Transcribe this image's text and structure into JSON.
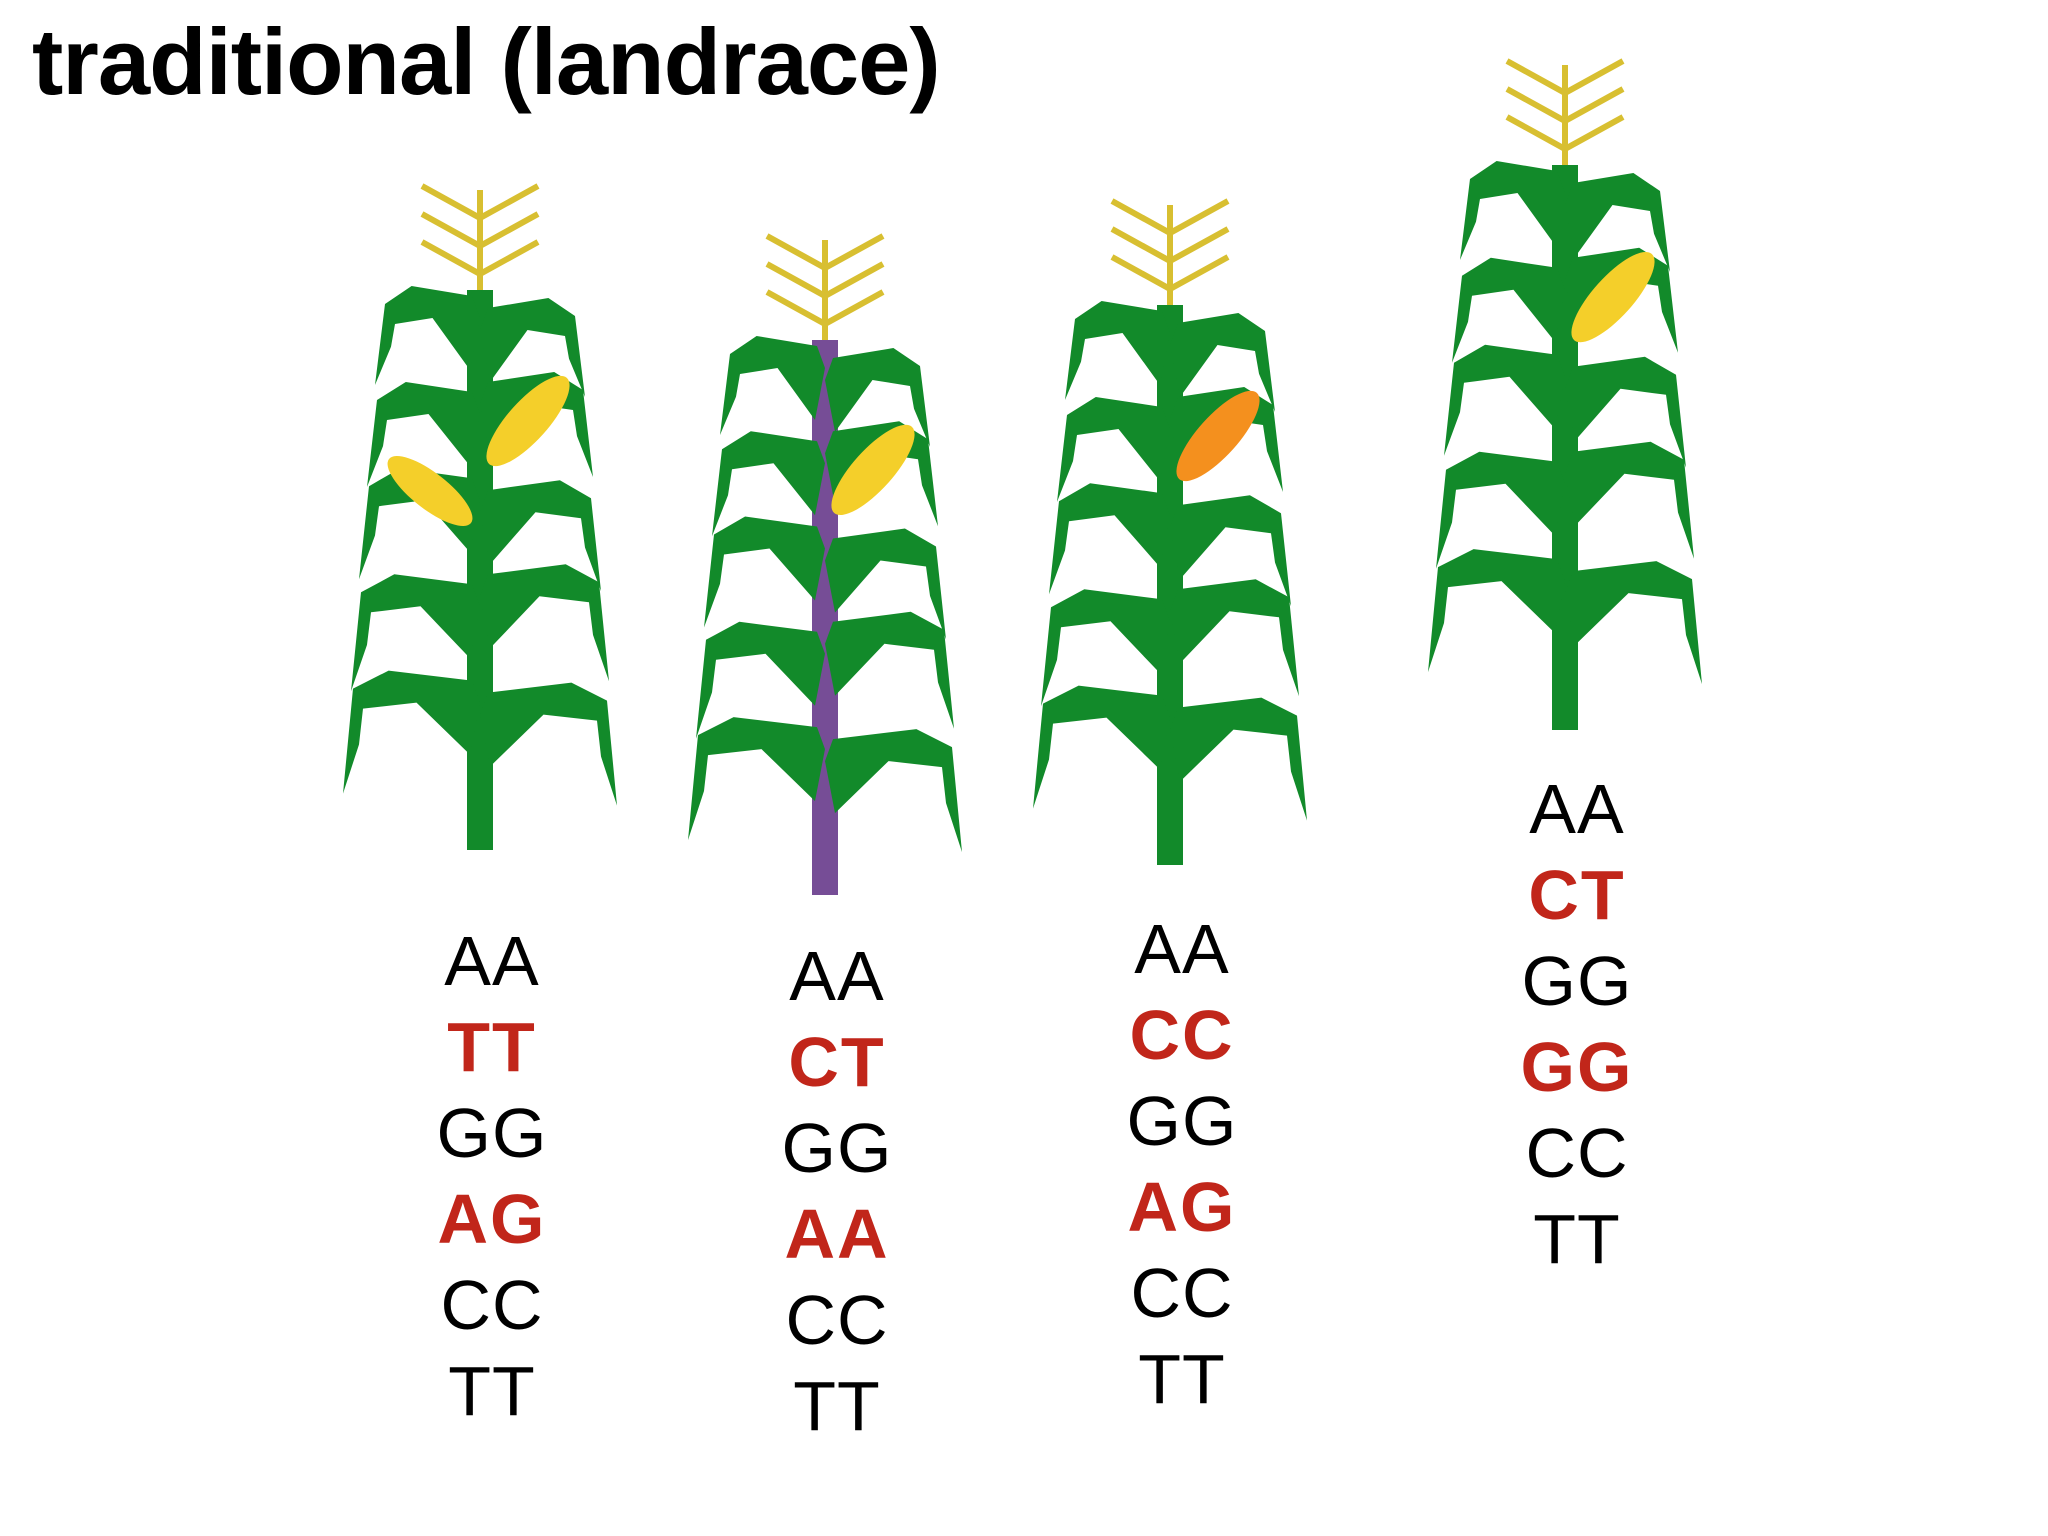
{
  "title": "traditional (landrace)",
  "colors": {
    "leaf": "#128a2a",
    "tassel": "#d8bf31",
    "cob_yellow": "#f4cf2a",
    "cob_orange": "#f4901e",
    "stem_purple": "#764d96",
    "mutation_text": "#c1261a",
    "normal_text": "#000000"
  },
  "plants": [
    {
      "stem_color": "green",
      "cob_color": "yellow",
      "cob_count": 2,
      "genotypes": [
        {
          "text": "AA",
          "highlight": false
        },
        {
          "text": "TT",
          "highlight": true
        },
        {
          "text": "GG",
          "highlight": false
        },
        {
          "text": "AG",
          "highlight": true
        },
        {
          "text": "CC",
          "highlight": false
        },
        {
          "text": "TT",
          "highlight": false
        }
      ]
    },
    {
      "stem_color": "purple",
      "cob_color": "yellow",
      "cob_count": 1,
      "genotypes": [
        {
          "text": "AA",
          "highlight": false
        },
        {
          "text": "CT",
          "highlight": true
        },
        {
          "text": "GG",
          "highlight": false
        },
        {
          "text": "AA",
          "highlight": true
        },
        {
          "text": "CC",
          "highlight": false
        },
        {
          "text": "TT",
          "highlight": false
        }
      ]
    },
    {
      "stem_color": "green",
      "cob_color": "orange",
      "cob_count": 1,
      "genotypes": [
        {
          "text": "AA",
          "highlight": false
        },
        {
          "text": "CC",
          "highlight": true
        },
        {
          "text": "GG",
          "highlight": false
        },
        {
          "text": "AG",
          "highlight": true
        },
        {
          "text": "CC",
          "highlight": false
        },
        {
          "text": "TT",
          "highlight": false
        }
      ]
    },
    {
      "stem_color": "green",
      "cob_color": "yellow",
      "cob_count": 1,
      "genotypes": [
        {
          "text": "AA",
          "highlight": false
        },
        {
          "text": "CT",
          "highlight": true
        },
        {
          "text": "GG",
          "highlight": false
        },
        {
          "text": "GG",
          "highlight": true
        },
        {
          "text": "CC",
          "highlight": false
        },
        {
          "text": "TT",
          "highlight": false
        }
      ]
    }
  ]
}
